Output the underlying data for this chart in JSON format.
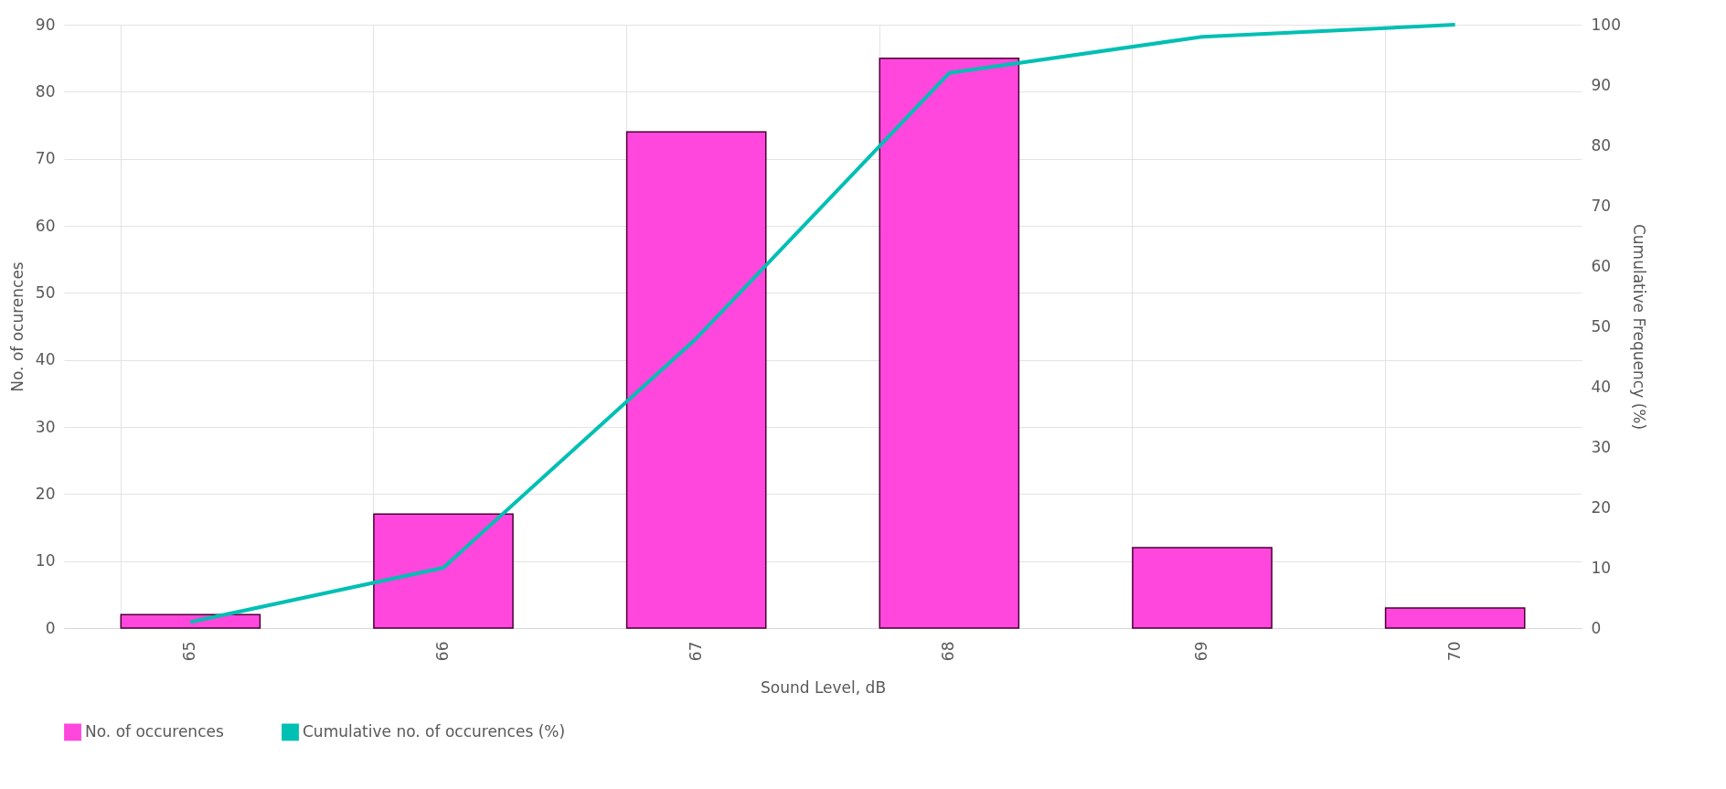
{
  "chart_data": {
    "type": "bar",
    "xlabel": "Sound Level, dB",
    "ylabel": "No. of ocurences",
    "y2label": "Cumulative Frequency (%)",
    "categories": [
      "65",
      "66",
      "67",
      "68",
      "69",
      "70"
    ],
    "series": [
      {
        "name": "No. of occurences",
        "color": "#ff47dd",
        "values": [
          2,
          17,
          74,
          85,
          12,
          3
        ]
      },
      {
        "name": "Cumulative no. of occurences (%)",
        "type": "line",
        "axis": "y2",
        "color": "#00bfb3",
        "values": [
          1,
          10,
          48,
          92,
          98,
          100
        ]
      }
    ],
    "ylim": [
      0,
      90
    ],
    "yticks": [
      0,
      10,
      20,
      30,
      40,
      50,
      60,
      70,
      80,
      90
    ],
    "y2lim": [
      0,
      100
    ],
    "y2ticks": [
      0,
      10,
      20,
      30,
      40,
      50,
      60,
      70,
      80,
      90,
      100
    ],
    "grid": true,
    "legend": "bottom"
  }
}
